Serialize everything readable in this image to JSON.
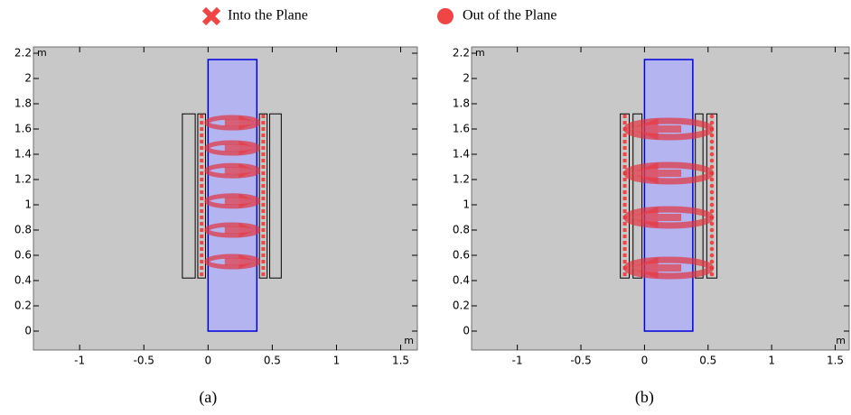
{
  "legend": [
    {
      "label": "Into the Plane"
    },
    {
      "label": "Out of the Plane"
    }
  ],
  "panels": [
    {
      "caption": "(a)",
      "x_unit": "m",
      "y_unit": "m",
      "xlim": [
        -1.36,
        1.63
      ],
      "ylim": [
        -0.15,
        2.25
      ],
      "xticks": [
        -1,
        -0.5,
        0,
        0.5,
        1,
        1.5
      ],
      "yticks": [
        0,
        0.2,
        0.4,
        0.6,
        0.8,
        1,
        1.2,
        1.4,
        1.6,
        1.8,
        2,
        2.2
      ]
    },
    {
      "caption": "(b)",
      "x_unit": "m",
      "y_unit": "m",
      "xlim": [
        -1.36,
        1.61
      ],
      "ylim": [
        -0.15,
        2.25
      ],
      "xticks": [
        -1,
        -0.5,
        0,
        0.5,
        1,
        1.5
      ],
      "yticks": [
        0,
        0.2,
        0.4,
        0.6,
        0.8,
        1,
        1.2,
        1.4,
        1.6,
        1.8,
        2,
        2.2
      ]
    }
  ]
}
